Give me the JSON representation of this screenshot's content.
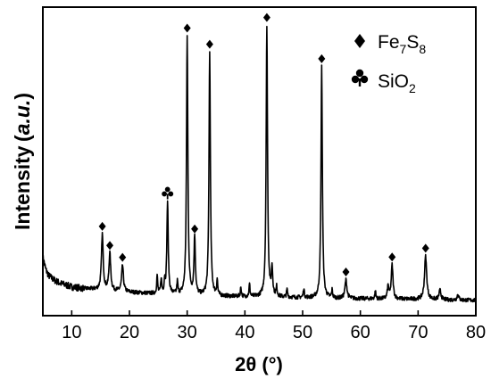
{
  "chart_data": {
    "type": "line",
    "title": "",
    "xlabel": "2θ (°)",
    "ylabel": "Intensity (a.u.)",
    "ylabel_main": "Intensity",
    "ylabel_unit": "a.u.",
    "xlim": [
      5,
      80
    ],
    "ylim": [
      0,
      100
    ],
    "xticks": [
      10,
      20,
      30,
      40,
      50,
      60,
      70,
      80
    ],
    "y_tick_labels_shown": false,
    "grid": false,
    "legend": {
      "placement": "top-right",
      "entries": [
        {
          "name_main": "Fe",
          "sub1": "7",
          "mid": "S",
          "sub2": "8",
          "marker": "diamond"
        },
        {
          "name_main": "SiO",
          "sub1": "2",
          "mid": "",
          "sub2": "",
          "marker": "club"
        }
      ]
    },
    "baseline": [
      [
        5,
        19
      ],
      [
        5.5,
        15
      ],
      [
        6,
        13
      ],
      [
        7,
        11.5
      ],
      [
        8,
        10.5
      ],
      [
        10,
        9.3
      ],
      [
        12,
        8.8
      ],
      [
        15,
        8.4
      ],
      [
        20,
        7.6
      ],
      [
        25,
        7
      ],
      [
        30,
        6.6
      ],
      [
        35,
        6.3
      ],
      [
        40,
        6.1
      ],
      [
        45,
        6
      ],
      [
        50,
        5.8
      ],
      [
        55,
        5.6
      ],
      [
        60,
        5.5
      ],
      [
        65,
        5.4
      ],
      [
        70,
        5.3
      ],
      [
        75,
        5.1
      ],
      [
        80,
        5
      ]
    ],
    "peaks": [
      {
        "x": 15.3,
        "h": 18,
        "w": 0.18,
        "marker": "diamond"
      },
      {
        "x": 16.6,
        "h": 12,
        "w": 0.18,
        "marker": "diamond"
      },
      {
        "x": 18.8,
        "h": 8.5,
        "w": 0.18,
        "marker": "diamond"
      },
      {
        "x": 24.8,
        "h": 6,
        "w": 0.1
      },
      {
        "x": 25.5,
        "h": 5,
        "w": 0.1
      },
      {
        "x": 26.1,
        "h": 4,
        "w": 0.1
      },
      {
        "x": 26.6,
        "h": 30,
        "w": 0.14,
        "marker": "club"
      },
      {
        "x": 28.3,
        "h": 4,
        "w": 0.1
      },
      {
        "x": 30.0,
        "h": 84,
        "w": 0.14,
        "marker": "diamond"
      },
      {
        "x": 31.3,
        "h": 19,
        "w": 0.14,
        "marker": "diamond"
      },
      {
        "x": 33.9,
        "h": 79,
        "w": 0.14,
        "marker": "diamond"
      },
      {
        "x": 35.2,
        "h": 5,
        "w": 0.1
      },
      {
        "x": 39.3,
        "h": 3,
        "w": 0.1
      },
      {
        "x": 40.8,
        "h": 4,
        "w": 0.1
      },
      {
        "x": 43.8,
        "h": 88,
        "w": 0.14,
        "marker": "diamond"
      },
      {
        "x": 44.7,
        "h": 9,
        "w": 0.14
      },
      {
        "x": 45.5,
        "h": 3,
        "w": 0.1
      },
      {
        "x": 47.3,
        "h": 2.5,
        "w": 0.1
      },
      {
        "x": 50.2,
        "h": 3,
        "w": 0.1
      },
      {
        "x": 53.3,
        "h": 75,
        "w": 0.14,
        "marker": "diamond"
      },
      {
        "x": 55.1,
        "h": 2.5,
        "w": 0.1
      },
      {
        "x": 57.5,
        "h": 6,
        "w": 0.2,
        "marker": "diamond"
      },
      {
        "x": 62.6,
        "h": 2.5,
        "w": 0.1
      },
      {
        "x": 64.8,
        "h": 4,
        "w": 0.15
      },
      {
        "x": 65.5,
        "h": 11,
        "w": 0.18,
        "marker": "diamond"
      },
      {
        "x": 71.3,
        "h": 14,
        "w": 0.22,
        "marker": "diamond"
      },
      {
        "x": 73.8,
        "h": 3,
        "w": 0.2
      },
      {
        "x": 76.9,
        "h": 2,
        "w": 0.15
      }
    ],
    "line_color": "#000000",
    "marker_color": "#000000"
  }
}
